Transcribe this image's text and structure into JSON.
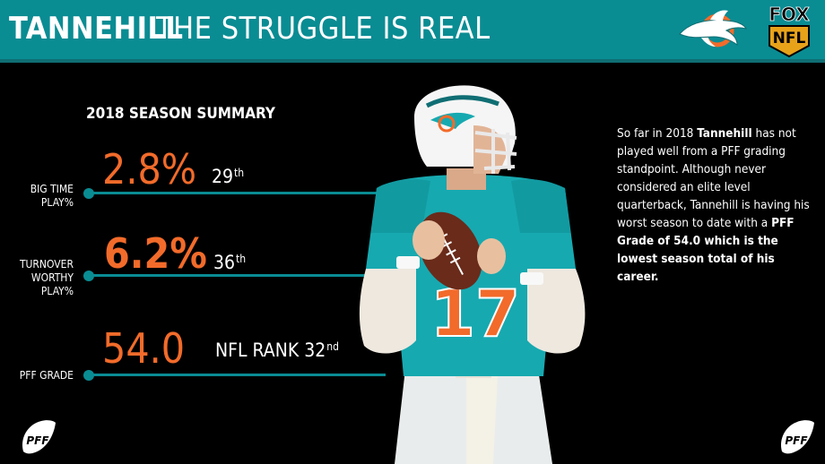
{
  "header": {
    "title_main": "TANNEHILL",
    "title_sub": "THE STRUGGLE IS REAL",
    "logos": {
      "team": "dolphins-logo",
      "network": "FOX NFL"
    }
  },
  "summary": {
    "heading": "2018 SEASON SUMMARY",
    "stats": [
      {
        "value": "2.8%",
        "rank": "29",
        "rank_suffix": "th",
        "label_lines": [
          "BIG TIME",
          "PLAY%"
        ]
      },
      {
        "value": "6.2%",
        "rank": "36",
        "rank_suffix": "th",
        "label_lines": [
          "TURNOVER",
          "WORTHY",
          "PLAY%"
        ]
      },
      {
        "value": "54.0",
        "rank": "NFL RANK 32",
        "rank_suffix": "nd",
        "label_lines": [
          "PFF GRADE"
        ]
      }
    ]
  },
  "description": {
    "p1": "So far in 2018 ",
    "p1_bold": "Tannehill",
    "p2": " has not played well from a PFF grading standpoint. Although never considered an elite level quarterback, Tannehill is having his worst season to date with a ",
    "p2_bold": "PFF Grade of 54.0 which is the lowest season total of his career."
  },
  "player": {
    "jersey_number": "17"
  },
  "footer": {
    "logo_left": "PFF",
    "logo_right": "PFF"
  },
  "colors": {
    "teal": "#0a8c93",
    "orange": "#f26b2a",
    "background": "#000000"
  }
}
